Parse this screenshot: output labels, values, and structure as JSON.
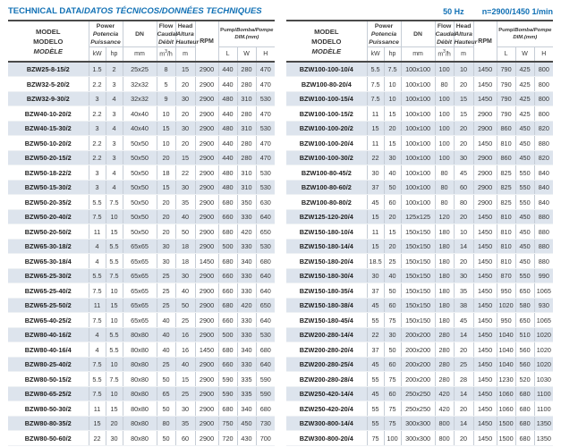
{
  "title": {
    "en": "TECHNICAL DATA/",
    "intl": "DATOS TÉCNICOS/DONNÉES TECHNIQUES",
    "frequency": "50 Hz",
    "speed": "n=2900/1450 1/min"
  },
  "header": {
    "model_en": "MODEL",
    "model_es": "MODELO",
    "model_fr": "MODÈLE",
    "power_en": "Power",
    "power_es": "Potencia",
    "power_fr": "Puissance",
    "dn": "DN",
    "flow_en": "Flow",
    "flow_es": "Caudal",
    "flow_fr": "Débit",
    "head_en": "Head",
    "head_es": "Altura",
    "head_fr": "Hauteur",
    "rpm": "RPM",
    "dim_en": "Pump/",
    "dim_intl": "Bomba/Pompe",
    "dim_sub": "DIM.(mm)",
    "unit_kw": "kW",
    "unit_hp": "hp",
    "unit_mm": "mm",
    "unit_flow_base": "m",
    "unit_flow_sup": "3",
    "unit_flow_rest": "/h",
    "unit_m": "m",
    "unit_l": "L",
    "unit_w": "W",
    "unit_h": "H"
  },
  "columns": [
    "model",
    "kW",
    "hp",
    "DN",
    "flow_m3h",
    "head_m",
    "RPM",
    "L",
    "W",
    "H"
  ],
  "tables": {
    "left": {
      "rows": [
        [
          "BZW25-8-15/2",
          "1.5",
          "2",
          "25x25",
          "8",
          "15",
          "2900",
          "440",
          "280",
          "470"
        ],
        [
          "BZW32-5-20/2",
          "2.2",
          "3",
          "32x32",
          "5",
          "20",
          "2900",
          "440",
          "280",
          "470"
        ],
        [
          "BZW32-9-30/2",
          "3",
          "4",
          "32x32",
          "9",
          "30",
          "2900",
          "480",
          "310",
          "530"
        ],
        [
          "BZW40-10-20/2",
          "2.2",
          "3",
          "40x40",
          "10",
          "20",
          "2900",
          "440",
          "280",
          "470"
        ],
        [
          "BZW40-15-30/2",
          "3",
          "4",
          "40x40",
          "15",
          "30",
          "2900",
          "480",
          "310",
          "530"
        ],
        [
          "BZW50-10-20/2",
          "2.2",
          "3",
          "50x50",
          "10",
          "20",
          "2900",
          "440",
          "280",
          "470"
        ],
        [
          "BZW50-20-15/2",
          "2.2",
          "3",
          "50x50",
          "20",
          "15",
          "2900",
          "440",
          "280",
          "470"
        ],
        [
          "BZW50-18-22/2",
          "3",
          "4",
          "50x50",
          "18",
          "22",
          "2900",
          "480",
          "310",
          "530"
        ],
        [
          "BZW50-15-30/2",
          "3",
          "4",
          "50x50",
          "15",
          "30",
          "2900",
          "480",
          "310",
          "530"
        ],
        [
          "BZW50-20-35/2",
          "5.5",
          "7.5",
          "50x50",
          "20",
          "35",
          "2900",
          "680",
          "350",
          "630"
        ],
        [
          "BZW50-20-40/2",
          "7.5",
          "10",
          "50x50",
          "20",
          "40",
          "2900",
          "660",
          "330",
          "640"
        ],
        [
          "BZW50-20-50/2",
          "11",
          "15",
          "50x50",
          "20",
          "50",
          "2900",
          "680",
          "420",
          "650"
        ],
        [
          "BZW65-30-18/2",
          "4",
          "5.5",
          "65x65",
          "30",
          "18",
          "2900",
          "500",
          "330",
          "530"
        ],
        [
          "BZW65-30-18/4",
          "4",
          "5.5",
          "65x65",
          "30",
          "18",
          "1450",
          "680",
          "340",
          "680"
        ],
        [
          "BZW65-25-30/2",
          "5.5",
          "7.5",
          "65x65",
          "25",
          "30",
          "2900",
          "660",
          "330",
          "640"
        ],
        [
          "BZW65-25-40/2",
          "7.5",
          "10",
          "65x65",
          "25",
          "40",
          "2900",
          "660",
          "330",
          "640"
        ],
        [
          "BZW65-25-50/2",
          "11",
          "15",
          "65x65",
          "25",
          "50",
          "2900",
          "680",
          "420",
          "650"
        ],
        [
          "BZW65-40-25/2",
          "7.5",
          "10",
          "65x65",
          "40",
          "25",
          "2900",
          "660",
          "330",
          "640"
        ],
        [
          "BZW80-40-16/2",
          "4",
          "5.5",
          "80x80",
          "40",
          "16",
          "2900",
          "500",
          "330",
          "530"
        ],
        [
          "BZW80-40-16/4",
          "4",
          "5.5",
          "80x80",
          "40",
          "16",
          "1450",
          "680",
          "340",
          "680"
        ],
        [
          "BZW80-25-40/2",
          "7.5",
          "10",
          "80x80",
          "25",
          "40",
          "2900",
          "660",
          "330",
          "640"
        ],
        [
          "BZW80-50-15/2",
          "5.5",
          "7.5",
          "80x80",
          "50",
          "15",
          "2900",
          "590",
          "335",
          "590"
        ],
        [
          "BZW80-65-25/2",
          "7.5",
          "10",
          "80x80",
          "65",
          "25",
          "2900",
          "590",
          "335",
          "590"
        ],
        [
          "BZW80-50-30/2",
          "11",
          "15",
          "80x80",
          "50",
          "30",
          "2900",
          "680",
          "340",
          "680"
        ],
        [
          "BZW80-80-35/2",
          "15",
          "20",
          "80x80",
          "80",
          "35",
          "2900",
          "750",
          "450",
          "730"
        ],
        [
          "BZW80-50-60/2",
          "22",
          "30",
          "80x80",
          "50",
          "60",
          "2900",
          "720",
          "430",
          "700"
        ]
      ]
    },
    "right": {
      "rows": [
        [
          "BZW100-100-10/4",
          "5.5",
          "7.5",
          "100x100",
          "100",
          "10",
          "1450",
          "790",
          "425",
          "800"
        ],
        [
          "BZW100-80-20/4",
          "7.5",
          "10",
          "100x100",
          "80",
          "20",
          "1450",
          "790",
          "425",
          "800"
        ],
        [
          "BZW100-100-15/4",
          "7.5",
          "10",
          "100x100",
          "100",
          "15",
          "1450",
          "790",
          "425",
          "800"
        ],
        [
          "BZW100-100-15/2",
          "11",
          "15",
          "100x100",
          "100",
          "15",
          "2900",
          "790",
          "425",
          "800"
        ],
        [
          "BZW100-100-20/2",
          "15",
          "20",
          "100x100",
          "100",
          "20",
          "2900",
          "860",
          "450",
          "820"
        ],
        [
          "BZW100-100-20/4",
          "11",
          "15",
          "100x100",
          "100",
          "20",
          "1450",
          "810",
          "450",
          "880"
        ],
        [
          "BZW100-100-30/2",
          "22",
          "30",
          "100x100",
          "100",
          "30",
          "2900",
          "860",
          "450",
          "820"
        ],
        [
          "BZW100-80-45/2",
          "30",
          "40",
          "100x100",
          "80",
          "45",
          "2900",
          "825",
          "550",
          "840"
        ],
        [
          "BZW100-80-60/2",
          "37",
          "50",
          "100x100",
          "80",
          "60",
          "2900",
          "825",
          "550",
          "840"
        ],
        [
          "BZW100-80-80/2",
          "45",
          "60",
          "100x100",
          "80",
          "80",
          "2900",
          "825",
          "550",
          "840"
        ],
        [
          "BZW125-120-20/4",
          "15",
          "20",
          "125x125",
          "120",
          "20",
          "1450",
          "810",
          "450",
          "880"
        ],
        [
          "BZW150-180-10/4",
          "11",
          "15",
          "150x150",
          "180",
          "10",
          "1450",
          "810",
          "450",
          "880"
        ],
        [
          "BZW150-180-14/4",
          "15",
          "20",
          "150x150",
          "180",
          "14",
          "1450",
          "810",
          "450",
          "880"
        ],
        [
          "BZW150-180-20/4",
          "18.5",
          "25",
          "150x150",
          "180",
          "20",
          "1450",
          "810",
          "450",
          "880"
        ],
        [
          "BZW150-180-30/4",
          "30",
          "40",
          "150x150",
          "180",
          "30",
          "1450",
          "870",
          "550",
          "990"
        ],
        [
          "BZW150-180-35/4",
          "37",
          "50",
          "150x150",
          "180",
          "35",
          "1450",
          "950",
          "650",
          "1065"
        ],
        [
          "BZW150-180-38/4",
          "45",
          "60",
          "150x150",
          "180",
          "38",
          "1450",
          "1020",
          "580",
          "930"
        ],
        [
          "BZW150-180-45/4",
          "55",
          "75",
          "150x150",
          "180",
          "45",
          "1450",
          "950",
          "650",
          "1065"
        ],
        [
          "BZW200-280-14/4",
          "22",
          "30",
          "200x200",
          "280",
          "14",
          "1450",
          "1040",
          "510",
          "1020"
        ],
        [
          "BZW200-280-20/4",
          "37",
          "50",
          "200x200",
          "280",
          "20",
          "1450",
          "1040",
          "560",
          "1020"
        ],
        [
          "BZW200-280-25/4",
          "45",
          "60",
          "200x200",
          "280",
          "25",
          "1450",
          "1040",
          "560",
          "1020"
        ],
        [
          "BZW200-280-28/4",
          "55",
          "75",
          "200x200",
          "280",
          "28",
          "1450",
          "1230",
          "520",
          "1030"
        ],
        [
          "BZW250-420-14/4",
          "45",
          "60",
          "250x250",
          "420",
          "14",
          "1450",
          "1060",
          "680",
          "1100"
        ],
        [
          "BZW250-420-20/4",
          "55",
          "75",
          "250x250",
          "420",
          "20",
          "1450",
          "1060",
          "680",
          "1100"
        ],
        [
          "BZW300-800-14/4",
          "55",
          "75",
          "300x300",
          "800",
          "14",
          "1450",
          "1500",
          "680",
          "1350"
        ],
        [
          "BZW300-800-20/4",
          "75",
          "100",
          "300x300",
          "800",
          "20",
          "1450",
          "1500",
          "680",
          "1350"
        ]
      ]
    }
  },
  "colors": {
    "accent_blue": "#1271b5",
    "row_stripe": "#dde4ed",
    "rule_dark": "#4a4a4a"
  }
}
